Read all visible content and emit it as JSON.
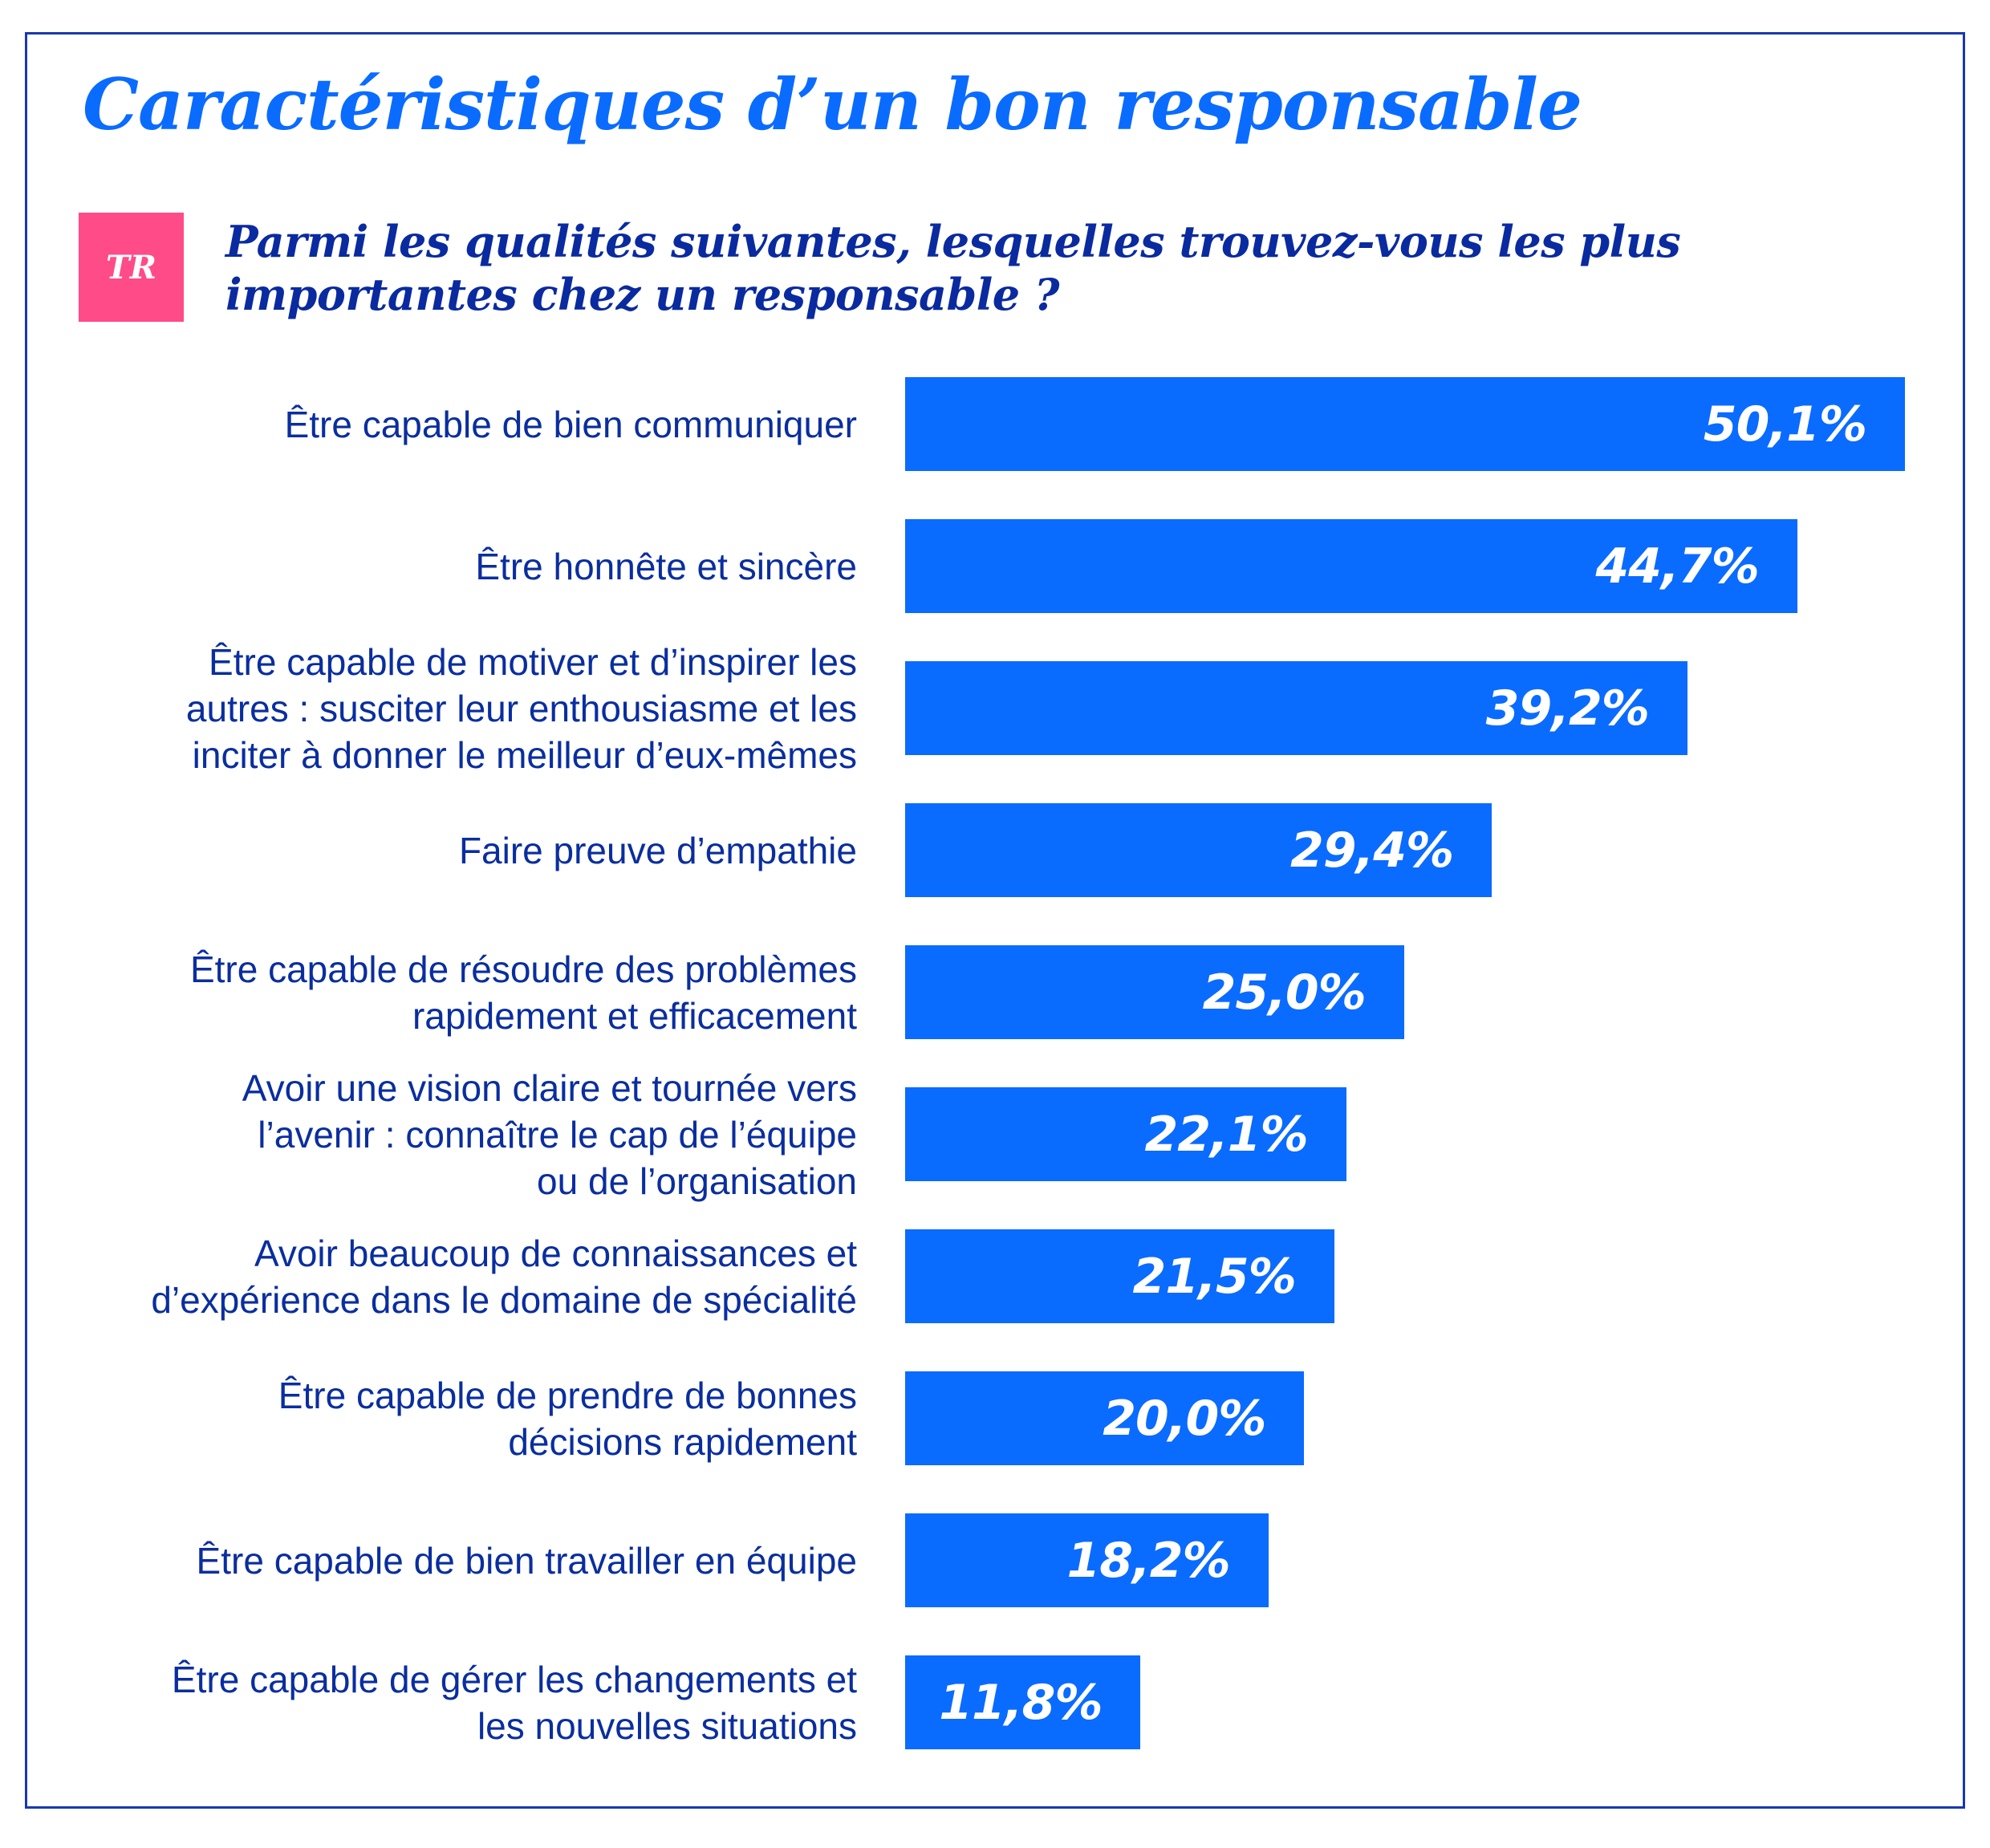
{
  "title": "Caractéristiques d’un bon responsable",
  "badge": "TR",
  "question": "Parmi les qualités suivantes, lesquelles trouvez-vous les plus importantes chez un responsable ?",
  "colors": {
    "title": "#0A6BFF",
    "bar": "#0A6BFF",
    "badge": "#FF4B87",
    "text": "#0A2E9E",
    "frame": "#1A38AE"
  },
  "chart_data": {
    "type": "bar",
    "orientation": "horizontal",
    "title": "Caractéristiques d’un bon responsable",
    "subtitle": "Parmi les qualités suivantes, lesquelles trouvez-vous les plus importantes chez un responsable ?",
    "xlabel": "",
    "ylabel": "",
    "unit": "%",
    "grid": false,
    "legend": "none",
    "xlim": [
      0,
      50.1
    ],
    "categories": [
      "Être capable de bien communiquer",
      "Être honnête et sincère",
      "Être capable de motiver et d’inspirer les autres : susciter leur enthousiasme et les inciter à donner le meilleur d’eux-mêmes",
      "Faire preuve d’empathie",
      "Être capable de résoudre des problèmes rapidement et efficacement",
      "Avoir une vision claire et tournée vers l’avenir : connaître le cap de l’équipe ou de l’organisation",
      "Avoir beaucoup de connaissances et d’expérience dans le domaine de spécialité",
      "Être capable de prendre de bonnes décisions rapidement",
      "Être capable de bien travailler en équipe",
      "Être capable de gérer les changements et les nouvelles situations"
    ],
    "category_lines": [
      [
        "Être capable de bien communiquer"
      ],
      [
        "Être honnête et sincère"
      ],
      [
        "Être capable de motiver et d’inspirer les",
        "autres : susciter leur enthousiasme et les",
        "inciter à donner le meilleur d’eux-mêmes"
      ],
      [
        "Faire preuve d’empathie"
      ],
      [
        "Être capable de résoudre des problèmes",
        "rapidement et efficacement"
      ],
      [
        "Avoir une vision claire et tournée vers",
        "l’avenir : connaître le cap de l’équipe",
        "ou de l’organisation"
      ],
      [
        "Avoir beaucoup de connaissances et",
        "d’expérience dans le domaine de spécialité"
      ],
      [
        "Être capable de prendre de bonnes",
        "décisions rapidement"
      ],
      [
        "Être capable de bien travailler en équipe"
      ],
      [
        "Être capable de gérer les changements et",
        "les nouvelles situations"
      ]
    ],
    "values": [
      50.1,
      44.7,
      39.2,
      29.4,
      25.0,
      22.1,
      21.5,
      20.0,
      18.2,
      11.8
    ],
    "value_labels": [
      "50,1%",
      "44,7%",
      "39,2%",
      "29,4%",
      "25,0%",
      "22,1%",
      "21,5%",
      "20,0%",
      "18,2%",
      "11,8%"
    ]
  }
}
